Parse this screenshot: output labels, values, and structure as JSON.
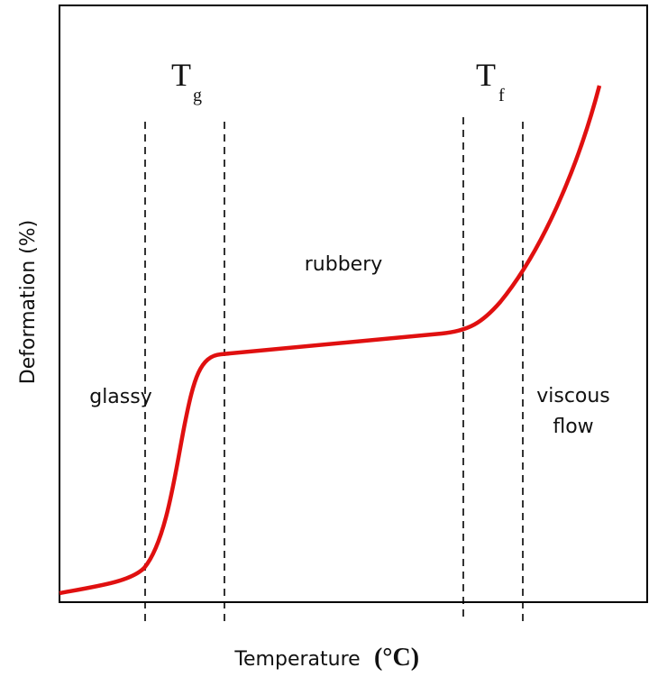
{
  "axes": {
    "y_label": "Deformation (%)",
    "x_label": "Temperature",
    "x_unit": "(°C)"
  },
  "transitions": [
    {
      "symbol": "T",
      "subscript": "g"
    },
    {
      "symbol": "T",
      "subscript": "f"
    }
  ],
  "regions": {
    "glassy": "glassy",
    "rubbery": "rubbery",
    "viscous_line1": "viscous",
    "viscous_line2": "flow"
  }
}
